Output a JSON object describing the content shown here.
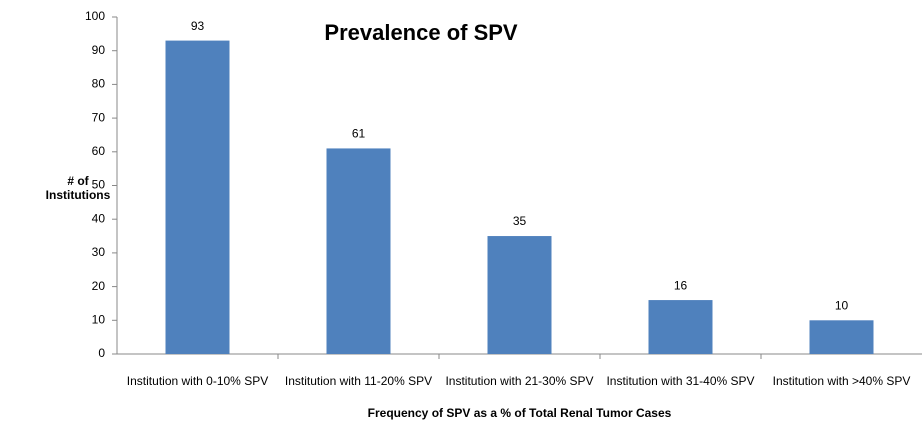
{
  "chart_data": {
    "type": "bar",
    "title": "Prevalence of SPV",
    "x_label": "Frequency of SPV as a % of Total Renal Tumor Cases",
    "y_label": "# of Institutions",
    "categories": [
      "Institution with 0-10% SPV",
      "Institution with 11-20% SPV",
      "Institution with 21-30% SPV",
      "Institution with 31-40% SPV",
      "Institution with >40% SPV"
    ],
    "values": [
      93,
      61,
      35,
      16,
      10
    ],
    "color": "#4f81bd",
    "ylim": [
      0,
      100
    ],
    "yticks": [
      0,
      10,
      20,
      30,
      40,
      50,
      60,
      70,
      80,
      90,
      100
    ],
    "grid": false
  }
}
